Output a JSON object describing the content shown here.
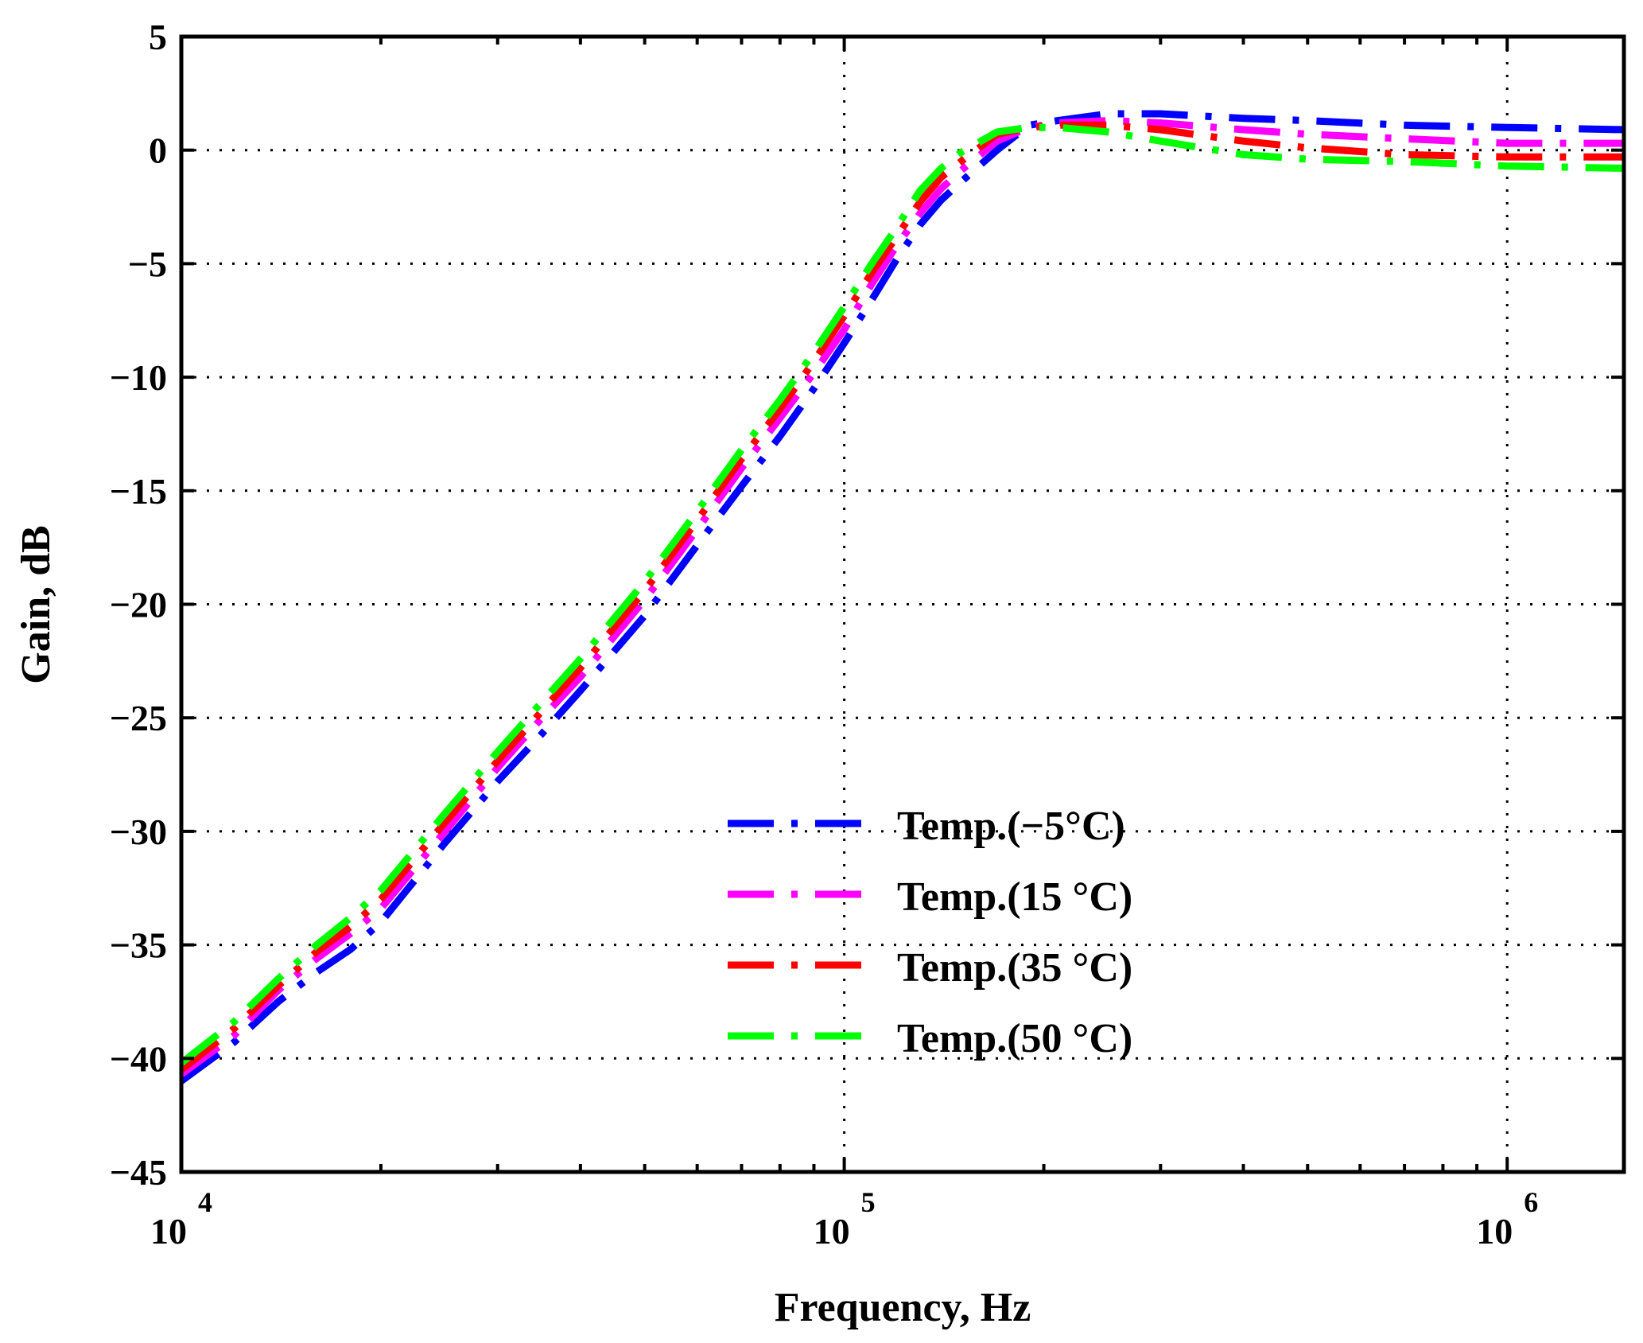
{
  "chart_data": {
    "type": "line",
    "xscale": "log",
    "xlabel": "Frequency, Hz",
    "ylabel": "Gain, dB",
    "xlim": [
      10000,
      1500000
    ],
    "ylim": [
      -45,
      5
    ],
    "yticks": [
      5,
      0,
      -5,
      -10,
      -15,
      -20,
      -25,
      -30,
      -35,
      -40,
      -45
    ],
    "ytick_labels": [
      "5",
      "0",
      "−5",
      "−10",
      "−15",
      "−20",
      "−25",
      "−30",
      "−35",
      "−40",
      "−45"
    ],
    "xticks": [
      {
        "base": "10",
        "exp": "4",
        "value": 10000
      },
      {
        "base": "10",
        "exp": "5",
        "value": 100000
      },
      {
        "base": "10",
        "exp": "6",
        "value": 1000000
      }
    ],
    "grid": true,
    "legend_position": "lower-right",
    "line_style": "dash-dot",
    "series": [
      {
        "name": "Temp.(−5°C)",
        "color": "#0000ff",
        "x": [
          10000,
          12000,
          14000,
          16000,
          18000,
          20000,
          25000,
          30000,
          35000,
          40000,
          50000,
          60000,
          70000,
          80000,
          90000,
          100000,
          110000,
          120000,
          130000,
          140000,
          150000,
          170000,
          190000,
          210000,
          250000,
          300000,
          400000,
          500000,
          700000,
          1000000,
          1500000
        ],
        "y": [
          -41.0,
          -39.3,
          -37.5,
          -36.2,
          -35.2,
          -34.0,
          -30.5,
          -27.8,
          -25.7,
          -23.8,
          -20.5,
          -17.4,
          -14.8,
          -12.6,
          -10.5,
          -8.5,
          -6.6,
          -4.8,
          -3.3,
          -2.2,
          -1.4,
          0.0,
          1.1,
          1.3,
          1.6,
          1.6,
          1.4,
          1.3,
          1.1,
          1.0,
          0.9
        ]
      },
      {
        "name": "Temp.(15 °C)",
        "color": "#ff00ff",
        "x": [
          10000,
          12000,
          14000,
          16000,
          18000,
          20000,
          25000,
          30000,
          35000,
          40000,
          50000,
          60000,
          70000,
          80000,
          90000,
          100000,
          110000,
          120000,
          130000,
          140000,
          150000,
          170000,
          190000,
          210000,
          250000,
          300000,
          400000,
          500000,
          700000,
          1000000,
          1500000
        ],
        "y": [
          -40.7,
          -39.0,
          -37.0,
          -35.6,
          -34.5,
          -33.4,
          -30.0,
          -27.2,
          -25.0,
          -23.2,
          -19.8,
          -16.7,
          -14.0,
          -11.8,
          -9.8,
          -7.9,
          -5.9,
          -4.2,
          -2.8,
          -1.7,
          -0.9,
          0.4,
          1.0,
          1.2,
          1.3,
          1.2,
          0.9,
          0.7,
          0.5,
          0.3,
          0.3
        ]
      },
      {
        "name": "Temp.(35 °C)",
        "color": "#ff0000",
        "x": [
          10000,
          12000,
          14000,
          16000,
          18000,
          20000,
          25000,
          30000,
          35000,
          40000,
          50000,
          60000,
          70000,
          80000,
          90000,
          100000,
          110000,
          120000,
          130000,
          140000,
          150000,
          170000,
          190000,
          210000,
          250000,
          300000,
          400000,
          500000,
          700000,
          1000000,
          1500000
        ],
        "y": [
          -40.5,
          -38.7,
          -36.8,
          -35.3,
          -34.2,
          -33.0,
          -29.6,
          -26.9,
          -24.7,
          -22.8,
          -19.4,
          -16.3,
          -13.6,
          -11.4,
          -9.3,
          -7.3,
          -5.4,
          -3.8,
          -2.3,
          -1.2,
          -0.5,
          0.7,
          1.0,
          1.1,
          1.1,
          0.9,
          0.4,
          0.1,
          -0.2,
          -0.3,
          -0.3
        ]
      },
      {
        "name": "Temp.(50 °C)",
        "color": "#00ff00",
        "x": [
          10000,
          12000,
          14000,
          16000,
          18000,
          20000,
          25000,
          30000,
          35000,
          40000,
          50000,
          60000,
          70000,
          80000,
          90000,
          100000,
          110000,
          120000,
          130000,
          140000,
          150000,
          170000,
          190000,
          210000,
          250000,
          300000,
          400000,
          500000,
          700000,
          1000000,
          1500000
        ],
        "y": [
          -40.2,
          -38.4,
          -36.5,
          -35.0,
          -33.8,
          -32.6,
          -29.2,
          -26.5,
          -24.3,
          -22.4,
          -19.0,
          -15.9,
          -13.2,
          -11.0,
          -8.9,
          -6.9,
          -5.0,
          -3.4,
          -1.8,
          -0.8,
          -0.1,
          0.8,
          1.0,
          1.0,
          0.8,
          0.4,
          -0.2,
          -0.4,
          -0.5,
          -0.7,
          -0.8
        ]
      }
    ]
  }
}
